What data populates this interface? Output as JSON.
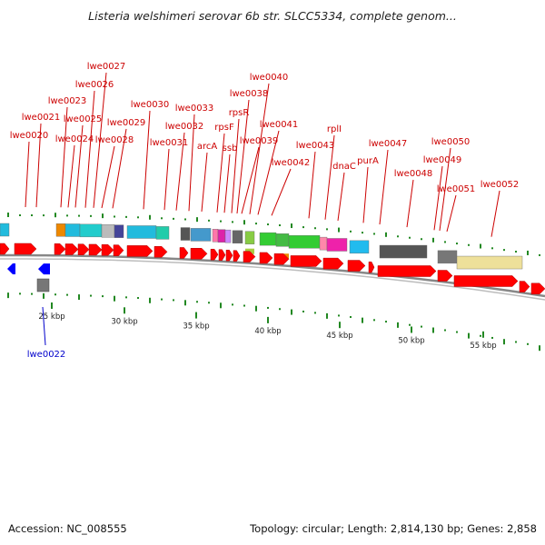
{
  "title": "Listeria welshimeri serovar 6b str. SLCC5334, complete genom...",
  "footer": {
    "accession": "Accession: NC_008555",
    "summary": "Topology: circular; Length: 2,814,130 bp; Genes: 2,858"
  },
  "colors": {
    "forward_gene": "#ff0000",
    "reverse_gene": "#0000ff",
    "forward_label": "#cc0000",
    "reverse_label": "#0000cc",
    "backbone": "#888888",
    "kbp_tick": "#228822"
  },
  "kbp_ticks": [
    "25 kbp",
    "30 kbp",
    "35 kbp",
    "40 kbp",
    "45 kbp",
    "50 kbp",
    "55 kbp"
  ],
  "forward_labels": [
    "lwe0020",
    "lwe0021",
    "lwe0023",
    "lwe0024",
    "lwe0025",
    "lwe0026",
    "lwe0027",
    "lwe0028",
    "lwe0029",
    "lwe0030",
    "lwe0031",
    "lwe0032",
    "lwe0033",
    "arcA",
    "rpsF",
    "ssb",
    "rpsR",
    "lwe0038",
    "lwe0039",
    "lwe0040",
    "lwe0041",
    "lwe0042",
    "lwe0043",
    "rplI",
    "dnaC",
    "purA",
    "lwe0047",
    "lwe0048",
    "lwe0049",
    "lwe0050",
    "lwe0051",
    "lwe0052"
  ],
  "reverse_labels": [
    "lwe0022"
  ]
}
